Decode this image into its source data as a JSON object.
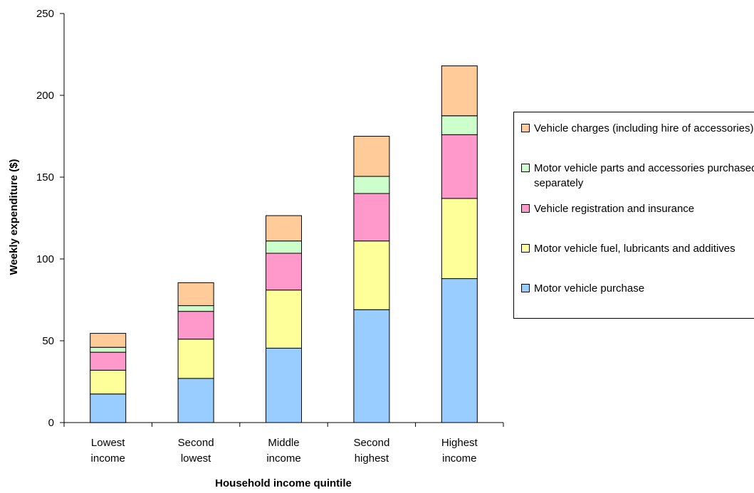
{
  "chart_data": {
    "type": "bar",
    "stacked": true,
    "title": "",
    "xlabel": "Household income quintile",
    "ylabel": "Weekly expenditure ($)",
    "ylim": [
      0,
      250
    ],
    "yticks": [
      0,
      50,
      100,
      150,
      200,
      250
    ],
    "categories": [
      [
        "Lowest",
        "income"
      ],
      [
        "Second",
        "lowest"
      ],
      [
        "Middle",
        "income"
      ],
      [
        "Second",
        "highest"
      ],
      [
        "Highest",
        "income"
      ]
    ],
    "series": [
      {
        "name": "Motor vehicle purchase",
        "color": "#99ccff",
        "values": [
          17.5,
          27,
          45.5,
          69,
          88
        ]
      },
      {
        "name": "Motor vehicle fuel, lubricants and additives",
        "color": "#ffff99",
        "values": [
          14.5,
          24,
          35.5,
          42,
          49
        ]
      },
      {
        "name": "Vehicle registration and insurance",
        "color": "#ff99cc",
        "values": [
          11,
          17,
          22.5,
          29,
          39
        ]
      },
      {
        "name": "Motor vehicle parts and accessories purchased separately",
        "color": "#ccffcc",
        "values": [
          3,
          3.5,
          7.5,
          10.5,
          11.5
        ]
      },
      {
        "name": "Vehicle charges (including hire of accessories)",
        "color": "#ffcc99",
        "values": [
          8.5,
          14,
          15.5,
          24.5,
          30.5
        ]
      }
    ],
    "grid": false,
    "legend_position": "right"
  },
  "legend": {
    "items": [
      {
        "label": "Vehicle charges (including hire of accessories)",
        "color": "#ffcc99"
      },
      {
        "label": "Motor vehicle parts and accessories purchased separately",
        "color": "#ccffcc"
      },
      {
        "label": "Vehicle registration and insurance",
        "color": "#ff99cc"
      },
      {
        "label": "Motor vehicle fuel, lubricants and additives",
        "color": "#ffff99"
      },
      {
        "label": "Motor vehicle purchase",
        "color": "#99ccff"
      }
    ]
  }
}
